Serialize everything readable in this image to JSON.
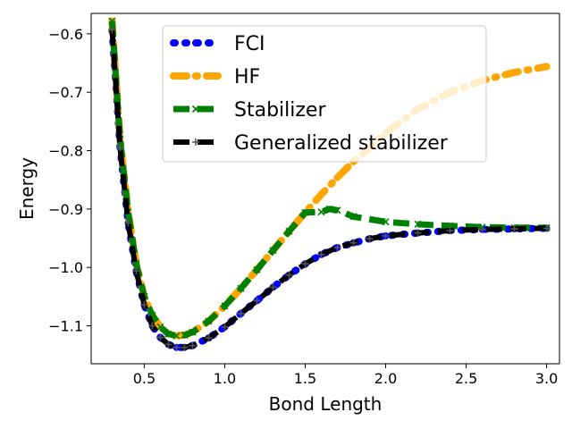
{
  "chart_data": {
    "type": "line",
    "title": "",
    "xlabel": "Bond Length",
    "ylabel": "Energy",
    "xlim": [
      0.17,
      3.08
    ],
    "ylim": [
      -1.165,
      -0.565
    ],
    "xticks": [
      0.5,
      1.0,
      1.5,
      2.0,
      2.5,
      3.0
    ],
    "xtick_labels": [
      "0.5",
      "1.0",
      "1.5",
      "2.0",
      "2.5",
      "3.0"
    ],
    "yticks": [
      -0.6,
      -0.7,
      -0.8,
      -0.9,
      -1.0,
      -1.1
    ],
    "ytick_labels": [
      "−0.6",
      "−0.7",
      "−0.8",
      "−0.9",
      "−1.0",
      "−1.1"
    ],
    "legend_position": "top-center",
    "series": [
      {
        "name": "FCI",
        "color": "#0000ff",
        "dash": "dotted",
        "marker": "circle",
        "x": [
          0.3,
          0.35,
          0.4,
          0.45,
          0.5,
          0.55,
          0.6,
          0.65,
          0.7,
          0.75,
          0.8,
          0.9,
          1.0,
          1.1,
          1.2,
          1.3,
          1.4,
          1.5,
          1.6,
          1.7,
          1.8,
          1.9,
          2.0,
          2.2,
          2.4,
          2.6,
          2.8,
          3.0
        ],
        "y": [
          -0.593,
          -0.795,
          -0.924,
          -1.006,
          -1.064,
          -1.1,
          -1.12,
          -1.132,
          -1.137,
          -1.137,
          -1.134,
          -1.121,
          -1.102,
          -1.079,
          -1.057,
          -1.034,
          -1.013,
          -0.994,
          -0.978,
          -0.966,
          -0.958,
          -0.951,
          -0.946,
          -0.941,
          -0.937,
          -0.935,
          -0.934,
          -0.933
        ]
      },
      {
        "name": "HF",
        "color": "#ffa500",
        "dash": "dashdot",
        "marker": "circle",
        "x": [
          0.3,
          0.35,
          0.4,
          0.45,
          0.5,
          0.55,
          0.6,
          0.65,
          0.7,
          0.75,
          0.8,
          0.9,
          1.0,
          1.1,
          1.2,
          1.3,
          1.4,
          1.5,
          1.6,
          1.7,
          1.8,
          1.9,
          2.0,
          2.2,
          2.4,
          2.6,
          2.8,
          3.0
        ],
        "y": [
          -0.578,
          -0.781,
          -0.905,
          -0.993,
          -1.05,
          -1.082,
          -1.102,
          -1.114,
          -1.117,
          -1.116,
          -1.111,
          -1.092,
          -1.066,
          -1.036,
          -1.004,
          -0.971,
          -0.938,
          -0.906,
          -0.875,
          -0.846,
          -0.819,
          -0.794,
          -0.77,
          -0.729,
          -0.7,
          -0.68,
          -0.666,
          -0.656
        ]
      },
      {
        "name": "Stabilizer",
        "color": "#008000",
        "dash": "dashed",
        "marker": "x",
        "x": [
          0.3,
          0.35,
          0.4,
          0.45,
          0.5,
          0.55,
          0.6,
          0.65,
          0.7,
          0.75,
          0.8,
          0.9,
          1.0,
          1.1,
          1.2,
          1.3,
          1.4,
          1.5,
          1.6,
          1.65,
          1.7,
          1.8,
          2.0,
          2.2,
          2.4,
          2.6,
          2.8,
          3.0
        ],
        "y": [
          -0.578,
          -0.781,
          -0.905,
          -0.993,
          -1.05,
          -1.082,
          -1.102,
          -1.114,
          -1.117,
          -1.116,
          -1.111,
          -1.092,
          -1.066,
          -1.036,
          -1.004,
          -0.971,
          -0.938,
          -0.906,
          -0.905,
          -0.9,
          -0.902,
          -0.913,
          -0.922,
          -0.926,
          -0.929,
          -0.931,
          -0.932,
          -0.932
        ]
      },
      {
        "name": "Generalized stabilizer",
        "color": "#000000",
        "dash": "dashed",
        "marker": "plus",
        "x": [
          0.3,
          0.35,
          0.4,
          0.45,
          0.5,
          0.55,
          0.6,
          0.65,
          0.7,
          0.75,
          0.8,
          0.9,
          1.0,
          1.1,
          1.2,
          1.3,
          1.4,
          1.5,
          1.6,
          1.7,
          1.8,
          1.9,
          2.0,
          2.2,
          2.4,
          2.6,
          2.8,
          3.0
        ],
        "y": [
          -0.593,
          -0.795,
          -0.924,
          -1.006,
          -1.064,
          -1.1,
          -1.12,
          -1.132,
          -1.137,
          -1.137,
          -1.134,
          -1.121,
          -1.102,
          -1.079,
          -1.057,
          -1.034,
          -1.013,
          -0.994,
          -0.978,
          -0.966,
          -0.958,
          -0.951,
          -0.946,
          -0.941,
          -0.937,
          -0.935,
          -0.934,
          -0.933
        ]
      }
    ]
  }
}
